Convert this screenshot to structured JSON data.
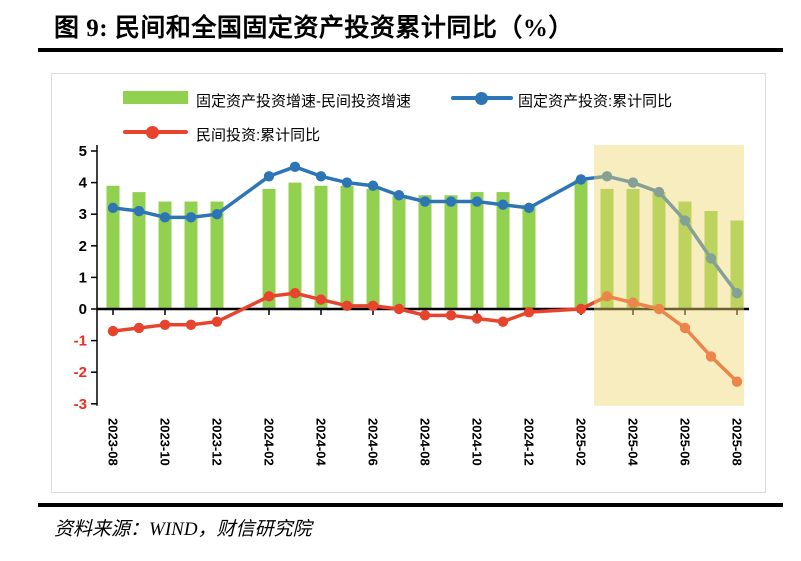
{
  "title": "图 9: 民间和全国固定资产投资累计同比（%）",
  "source": "资料来源：WIND，财信研究院",
  "legend": [
    {
      "label": "固定资产投资增速-民间投资增速",
      "type": "bar",
      "color": "#92D050"
    },
    {
      "label": "固定资产投资:累计同比",
      "type": "line",
      "color": "#2E75B6"
    },
    {
      "label": "民间投资:累计同比",
      "type": "line",
      "color": "#E8432C"
    }
  ],
  "chart_data": {
    "type": "bar+line",
    "x": [
      "2023-08",
      "2023-09",
      "2023-10",
      "2023-11",
      "2023-12",
      "2024-02",
      "2024-03",
      "2024-04",
      "2024-05",
      "2024-06",
      "2024-07",
      "2024-08",
      "2024-09",
      "2024-10",
      "2024-11",
      "2024-12",
      "2025-02",
      "2025-03",
      "2025-04",
      "2025-05",
      "2025-06",
      "2025-07",
      "2025-08"
    ],
    "series": [
      {
        "name": "固定资产投资增速-民间投资增速",
        "type": "bar",
        "color": "#92D050",
        "values": [
          3.9,
          3.7,
          3.4,
          3.4,
          3.4,
          3.8,
          4.0,
          3.9,
          3.9,
          3.8,
          3.6,
          3.6,
          3.6,
          3.7,
          3.7,
          3.3,
          4.1,
          3.8,
          3.8,
          3.7,
          3.4,
          3.1,
          2.8
        ]
      },
      {
        "name": "固定资产投资:累计同比",
        "type": "line",
        "color": "#2E75B6",
        "values": [
          3.2,
          3.1,
          2.9,
          2.9,
          3.0,
          4.2,
          4.5,
          4.2,
          4.0,
          3.9,
          3.6,
          3.4,
          3.4,
          3.4,
          3.3,
          3.2,
          4.1,
          4.2,
          4.0,
          3.7,
          2.8,
          1.6,
          0.5
        ]
      },
      {
        "name": "民间投资:累计同比",
        "type": "line",
        "color": "#E8432C",
        "values": [
          -0.7,
          -0.6,
          -0.5,
          -0.5,
          -0.4,
          0.4,
          0.5,
          0.3,
          0.1,
          0.1,
          0.0,
          -0.2,
          -0.2,
          -0.3,
          -0.4,
          -0.1,
          0.0,
          0.4,
          0.2,
          0.0,
          -0.6,
          -1.5,
          -2.3
        ]
      }
    ],
    "x_tick_labels": [
      "2023-08",
      "2023-10",
      "2023-12",
      "2024-02",
      "2024-04",
      "2024-06",
      "2024-08",
      "2024-10",
      "2024-12",
      "2025-02",
      "2025-04",
      "2025-06",
      "2025-08"
    ],
    "y_ticks": [
      5,
      4,
      3,
      2,
      1,
      0,
      -1,
      -2,
      -3
    ],
    "ylim": [
      -3,
      5
    ],
    "grid": false,
    "legend_position": "top",
    "negative_tick_color": "#ED2D21",
    "axis_color": "#000000",
    "highlight": {
      "from": "2025-03",
      "to": "2025-08",
      "color": "#F0D66E",
      "opacity": 0.45
    }
  }
}
